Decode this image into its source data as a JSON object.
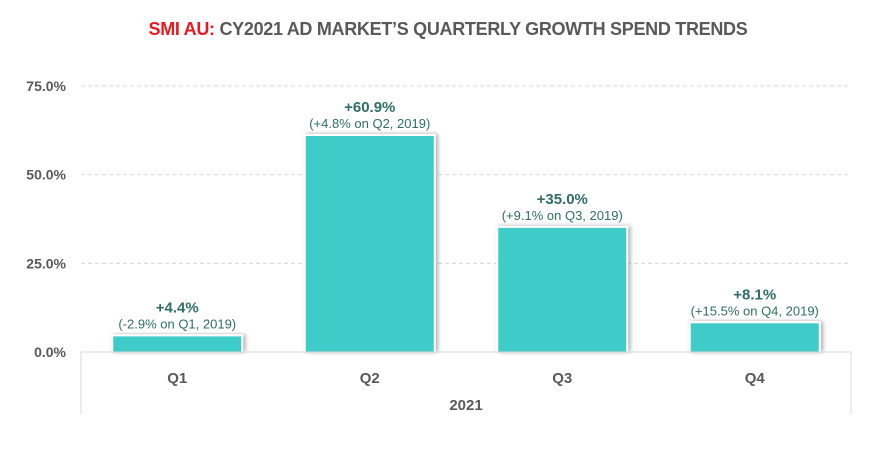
{
  "title": {
    "brand": "SMI AU:",
    "text": " CY2021 AD MARKET’S QUARTERLY GROWTH SPEND TRENDS"
  },
  "colors": {
    "bar": "#3fcbc8",
    "brand": "#e8191f",
    "label": "#2f6e69",
    "axis_text": "#595959",
    "grid": "#d9d9d9"
  },
  "chart_data": {
    "type": "bar",
    "title": "SMI AU: CY2021 AD MARKET’S QUARTERLY GROWTH SPEND TRENDS",
    "categories": [
      "Q1",
      "Q2",
      "Q3",
      "Q4"
    ],
    "group_label": "2021",
    "values": [
      4.4,
      60.9,
      35.0,
      8.1
    ],
    "data_labels": [
      "+4.4%",
      "+60.9%",
      "+35.0%",
      "+8.1%"
    ],
    "sub_labels": [
      "(-2.9% on Q1, 2019)",
      "(+4.8% on Q2, 2019)",
      "(+9.1% on Q3, 2019)",
      "(+15.5% on Q4, 2019)"
    ],
    "yticks": [
      0,
      25,
      50,
      75
    ],
    "ytick_labels": [
      "0.0%",
      "25.0%",
      "50.0%",
      "75.0%"
    ],
    "ylim": [
      0,
      75
    ],
    "xlabel": "2021",
    "ylabel": "",
    "grid": true,
    "legend": "none"
  }
}
